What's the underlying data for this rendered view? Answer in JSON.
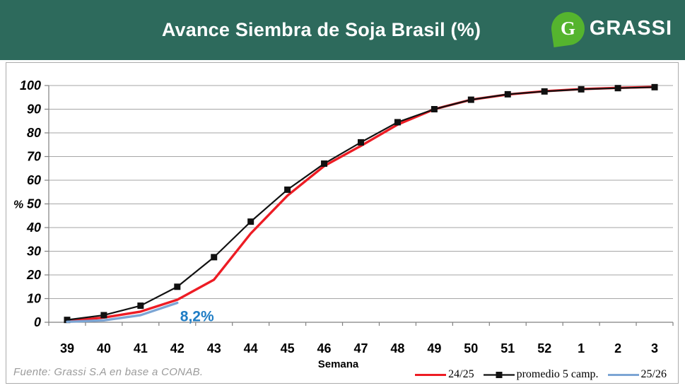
{
  "header": {
    "title": "Avance Siembra de Soja Brasil (%)",
    "brand": "GRASSI",
    "logo_monogram": "G",
    "bg_color": "#2D6A5C",
    "logo_green": "#55B42E"
  },
  "footer": {
    "source": "Fuente: Grassi S.A en base a CONAB."
  },
  "chart_data": {
    "type": "line",
    "title": "Avance Siembra de Soja Brasil (%)",
    "xlabel": "Semana",
    "ylabel": "%",
    "ylim": [
      0,
      100
    ],
    "ytick_step": 10,
    "grid": true,
    "legend_position": "bottom-right",
    "categories": [
      "39",
      "40",
      "41",
      "42",
      "43",
      "44",
      "45",
      "46",
      "47",
      "48",
      "49",
      "50",
      "51",
      "52",
      "1",
      "2",
      "3"
    ],
    "series": [
      {
        "name": "24/25",
        "color": "#ED1C24",
        "marker": "none",
        "values": [
          0.5,
          2,
          4.5,
          9.5,
          18,
          37.5,
          53.5,
          66,
          74.5,
          83.5,
          90,
          94,
          96.2,
          97.6,
          98.5,
          99,
          99.4
        ]
      },
      {
        "name": "promedio 5 camp.",
        "color": "#111111",
        "marker": "square",
        "values": [
          1,
          3,
          7,
          15,
          27.5,
          42.5,
          56,
          67,
          76,
          84.5,
          90,
          94,
          96.3,
          97.5,
          98.4,
          98.9,
          99.3
        ]
      },
      {
        "name": "25/26",
        "color": "#7CA5D4",
        "marker": "none",
        "values": [
          0.2,
          0.8,
          3,
          8.2,
          null,
          null,
          null,
          null,
          null,
          null,
          null,
          null,
          null,
          null,
          null,
          null,
          null
        ]
      }
    ],
    "annotations": [
      {
        "text": "8,2%",
        "category": "42",
        "value": 8.2,
        "color": "#1F7DC5"
      }
    ],
    "colors": {
      "gridline": "#A6A6A6",
      "axis": "#808080"
    }
  }
}
